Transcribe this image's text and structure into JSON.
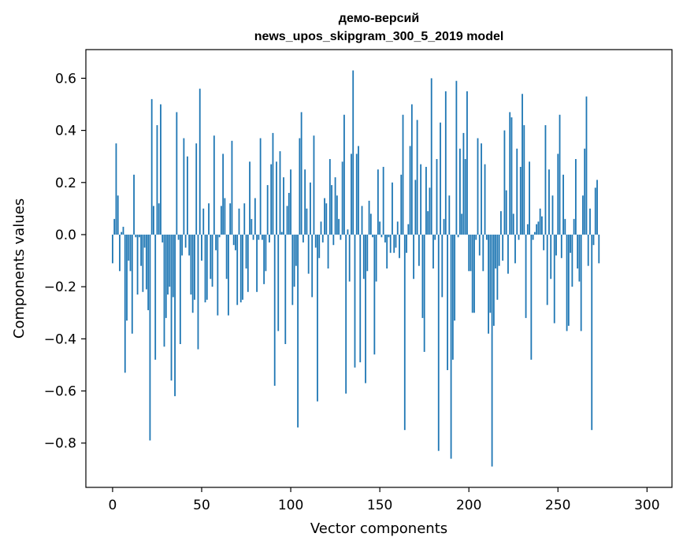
{
  "chart_data": {
    "type": "bar",
    "title_line1": "демо-версий",
    "title_line2": "news_upos_skipgram_300_5_2019 model",
    "xlabel": "Vector components",
    "ylabel": "Components values",
    "xlim": [
      -15,
      314
    ],
    "ylim": [
      -0.97,
      0.71
    ],
    "xticks": [
      0,
      50,
      100,
      150,
      200,
      250,
      300
    ],
    "xtick_labels": [
      "0",
      "50",
      "100",
      "150",
      "200",
      "250",
      "300"
    ],
    "yticks": [
      -0.8,
      -0.6,
      -0.4,
      -0.2,
      0.0,
      0.2,
      0.4,
      0.6
    ],
    "ytick_labels": [
      "−0.8",
      "−0.6",
      "−0.4",
      "−0.2",
      "0.0",
      "0.2",
      "0.4",
      "0.6"
    ],
    "color": "#1f77b4",
    "values": [
      -0.11,
      0.06,
      0.35,
      0.15,
      -0.14,
      0.01,
      0.03,
      -0.53,
      -0.33,
      -0.1,
      -0.14,
      -0.38,
      0.23,
      -0.01,
      -0.23,
      -0.01,
      -0.12,
      -0.22,
      -0.05,
      -0.21,
      -0.29,
      -0.79,
      0.52,
      0.11,
      -0.48,
      0.42,
      0.12,
      0.5,
      -0.03,
      -0.43,
      -0.32,
      -0.23,
      -0.2,
      -0.56,
      -0.24,
      -0.62,
      0.47,
      -0.02,
      -0.42,
      -0.08,
      0.37,
      -0.05,
      0.3,
      -0.08,
      -0.23,
      -0.3,
      -0.25,
      0.35,
      -0.44,
      0.56,
      -0.1,
      0.1,
      -0.26,
      -0.25,
      0.12,
      -0.17,
      -0.2,
      0.38,
      -0.06,
      -0.31,
      -0.01,
      0.11,
      0.31,
      0.14,
      -0.17,
      -0.31,
      0.12,
      0.36,
      -0.04,
      -0.06,
      -0.27,
      0.1,
      -0.26,
      -0.25,
      0.12,
      -0.13,
      -0.22,
      0.28,
      0.06,
      -0.02,
      0.14,
      -0.22,
      -0.02,
      0.37,
      -0.02,
      -0.19,
      -0.14,
      0.19,
      -0.03,
      0.27,
      0.39,
      -0.58,
      0.28,
      -0.37,
      0.32,
      0.01,
      0.22,
      -0.42,
      0.11,
      0.16,
      0.25,
      -0.27,
      -0.2,
      -0.12,
      -0.74,
      0.37,
      0.47,
      -0.03,
      0.25,
      0.1,
      -0.15,
      0.2,
      -0.24,
      0.38,
      -0.05,
      -0.64,
      -0.09,
      0.05,
      -0.03,
      0.14,
      0.12,
      -0.13,
      0.29,
      0.19,
      -0.04,
      0.22,
      0.15,
      0.06,
      -0.02,
      0.28,
      0.46,
      -0.61,
      0.02,
      -0.18,
      0.31,
      0.63,
      -0.51,
      0.31,
      0.34,
      -0.49,
      0.11,
      -0.17,
      -0.57,
      -0.14,
      0.13,
      0.08,
      -0.01,
      -0.46,
      -0.18,
      0.25,
      0.05,
      -0.01,
      0.26,
      -0.03,
      -0.13,
      -0.01,
      -0.07,
      0.2,
      -0.07,
      -0.05,
      0.05,
      -0.09,
      0.23,
      0.46,
      -0.75,
      -0.07,
      0.04,
      0.34,
      0.5,
      -0.17,
      0.21,
      0.44,
      -0.12,
      0.27,
      -0.32,
      -0.45,
      0.26,
      0.09,
      0.18,
      0.6,
      -0.13,
      -0.02,
      0.29,
      -0.83,
      0.43,
      -0.24,
      0.06,
      0.55,
      -0.52,
      0.15,
      -0.86,
      -0.48,
      -0.33,
      0.59,
      -0.01,
      0.33,
      0.08,
      0.39,
      0.29,
      0.55,
      -0.14,
      -0.14,
      -0.3,
      -0.3,
      -0.02,
      0.37,
      -0.08,
      0.35,
      -0.14,
      0.27,
      -0.02,
      -0.38,
      -0.3,
      -0.89,
      -0.35,
      -0.13,
      -0.25,
      -0.12,
      0.09,
      -0.1,
      0.4,
      0.17,
      -0.15,
      0.47,
      0.45,
      0.08,
      -0.11,
      0.33,
      -0.02,
      0.26,
      0.54,
      0.42,
      -0.32,
      0.04,
      0.28,
      -0.48,
      -0.02,
      0.01,
      0.04,
      0.05,
      0.1,
      0.07,
      -0.06,
      0.42,
      -0.27,
      0.25,
      -0.17,
      0.15,
      -0.34,
      -0.08,
      0.31,
      0.46,
      -0.09,
      0.23,
      0.06,
      -0.37,
      -0.35,
      -0.07,
      -0.2,
      0.06,
      0.29,
      -0.13,
      -0.18,
      -0.37,
      0.15,
      0.33,
      0.53,
      -0.12,
      0.1,
      -0.75,
      -0.04,
      0.18,
      0.21,
      -0.11
    ]
  }
}
